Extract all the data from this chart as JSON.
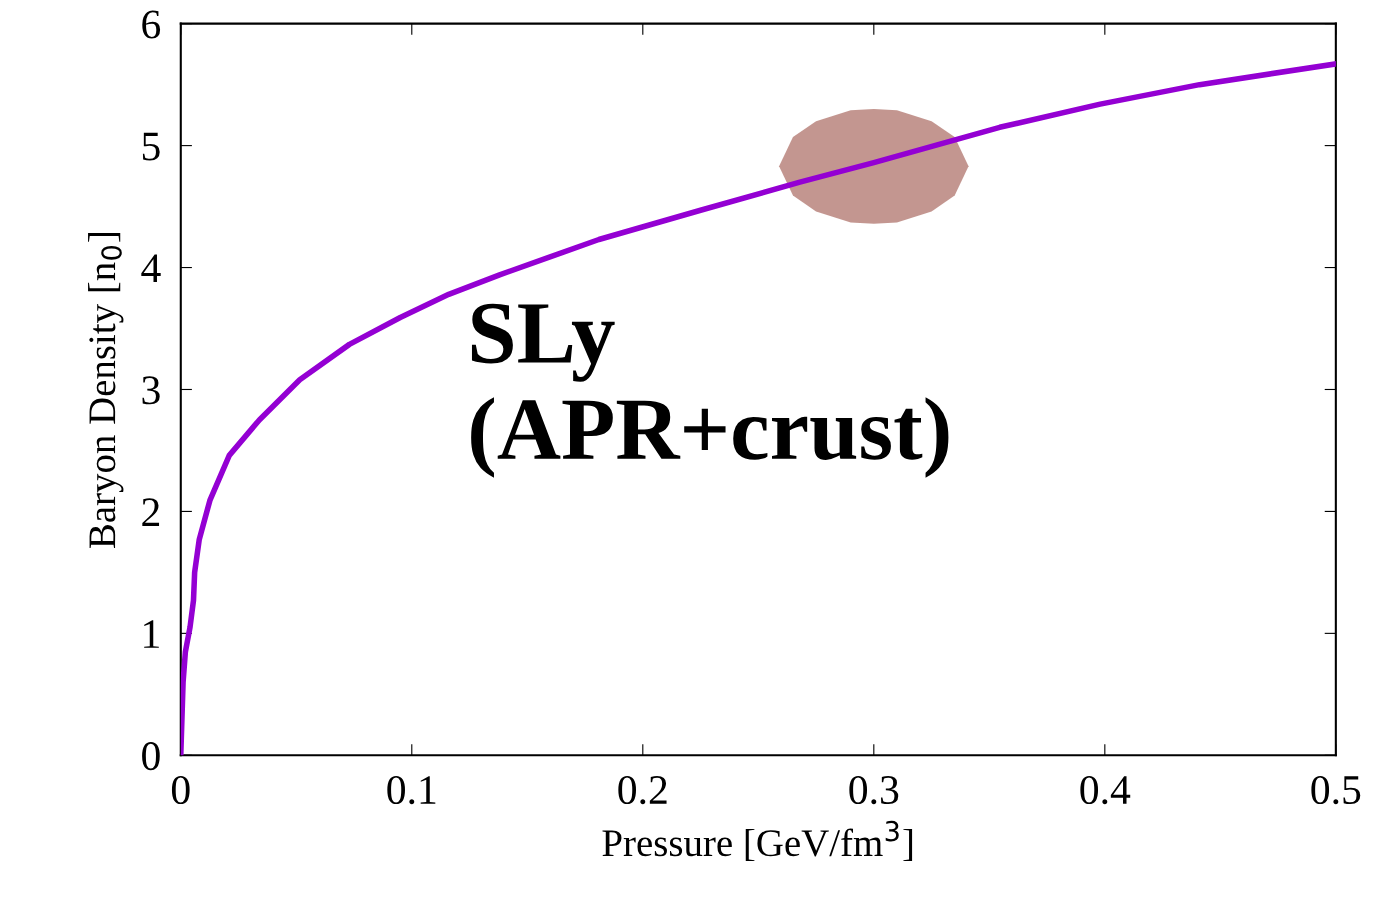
{
  "chart_data": {
    "type": "line",
    "xlabel": "Pressure [GeV/fm$^{3}$]",
    "ylabel": "Baryon Density [n$_{0}$]",
    "xlim": [
      0,
      0.5
    ],
    "xticks": [
      {
        "value": 0,
        "label": "0"
      },
      0.1,
      0.2,
      0.3,
      0.4,
      0.5
    ],
    "ylim": [
      0,
      6
    ],
    "yticks": [
      0,
      1,
      2,
      3,
      4,
      5,
      6
    ],
    "grid": false,
    "legend": false,
    "annotations": [
      "SLy\n(APR+crust)"
    ],
    "series": [
      {
        "color": "#9400d3",
        "x": [
          0,
          0.0005,
          0.001,
          0.002,
          0.004,
          0.0055,
          0.006,
          0.008,
          0.0126,
          0.021,
          0.034,
          0.0515,
          0.073,
          0.095,
          0.116,
          0.138,
          0.181,
          0.225,
          0.268,
          0.3,
          0.3545,
          0.398,
          0.441,
          0.5
        ],
        "values": [
          0,
          0.3,
          0.6,
          0.85,
          1.05,
          1.27,
          1.5,
          1.77,
          2.09,
          2.46,
          2.75,
          3.08,
          3.37,
          3.59,
          3.78,
          3.94,
          4.23,
          4.47,
          4.7,
          4.86,
          5.15,
          5.34,
          5.5,
          5.67
        ]
      },
      {
        "type": "area",
        "color": "#b8847d",
        "x": [
          0.259,
          0.265,
          0.275,
          0.29,
          0.3,
          0.31,
          0.325,
          0.335,
          0.341
        ],
        "values": [
          null,
          null,
          null,
          null,
          null,
          null,
          null,
          null,
          null
        ],
        "lower": [
          4.83,
          4.59,
          4.46,
          4.37,
          4.36,
          4.37,
          4.46,
          4.59,
          4.83
        ],
        "upper": [
          4.83,
          5.07,
          5.2,
          5.29,
          5.3,
          5.29,
          5.2,
          5.07,
          4.83
        ]
      }
    ]
  }
}
